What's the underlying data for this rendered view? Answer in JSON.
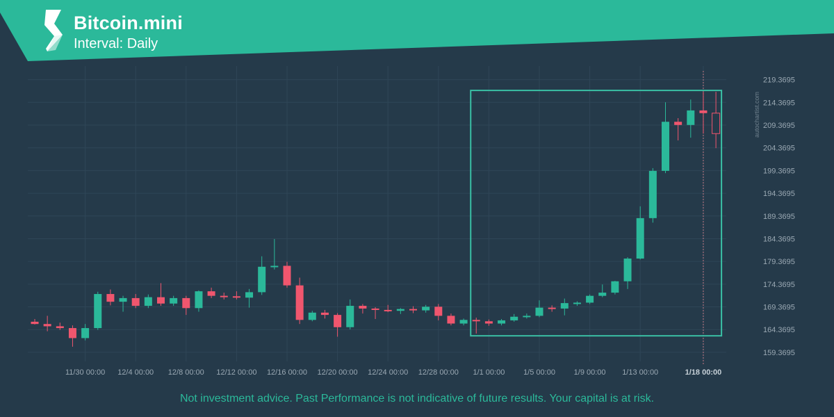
{
  "header": {
    "title": "Bitcoin.mini",
    "interval": "Interval: Daily"
  },
  "watermark": "autochartist.com",
  "disclaimer": "Not investment advice. Past Performance is not indicative of future results. Your capital is at risk.",
  "colors": {
    "background": "#253a4a",
    "banner": "#2bb99a",
    "up": "#2bb99a",
    "down": "#f0566e",
    "grid": "#2f4657",
    "pattern_box": "#3ac0a5"
  },
  "chart_data": {
    "type": "candlestick",
    "ylim": [
      157.3695,
      222.3695
    ],
    "y_ticks": [
      "159.3695",
      "164.3695",
      "169.3695",
      "174.3695",
      "179.3695",
      "184.3695",
      "189.3695",
      "194.3695",
      "199.3695",
      "204.3695",
      "209.3695",
      "214.3695",
      "219.3695"
    ],
    "x_ticks": [
      {
        "label": "11/30 00:00",
        "index": 4
      },
      {
        "label": "12/4 00:00",
        "index": 8
      },
      {
        "label": "12/8 00:00",
        "index": 12
      },
      {
        "label": "12/12 00:00",
        "index": 16
      },
      {
        "label": "12/16 00:00",
        "index": 20
      },
      {
        "label": "12/20 00:00",
        "index": 24
      },
      {
        "label": "12/24 00:00",
        "index": 28
      },
      {
        "label": "12/28 00:00",
        "index": 32
      },
      {
        "label": "1/1 00:00",
        "index": 36
      },
      {
        "label": "1/5 00:00",
        "index": 40
      },
      {
        "label": "1/9 00:00",
        "index": 44
      },
      {
        "label": "1/13 00:00",
        "index": 48
      },
      {
        "label": "1/18 00:00",
        "index": 53,
        "highlight": true
      }
    ],
    "candles": [
      {
        "o": 166.1,
        "h": 166.7,
        "l": 165.5,
        "c": 165.6
      },
      {
        "o": 165.6,
        "h": 167.4,
        "l": 164.0,
        "c": 165.1
      },
      {
        "o": 165.1,
        "h": 165.9,
        "l": 164.3,
        "c": 164.7
      },
      {
        "o": 164.7,
        "h": 165.3,
        "l": 160.6,
        "c": 162.5
      },
      {
        "o": 162.5,
        "h": 165.6,
        "l": 162.0,
        "c": 164.7
      },
      {
        "o": 164.7,
        "h": 172.7,
        "l": 164.3,
        "c": 172.2
      },
      {
        "o": 172.2,
        "h": 173.2,
        "l": 169.7,
        "c": 170.5
      },
      {
        "o": 170.5,
        "h": 171.8,
        "l": 168.3,
        "c": 171.3
      },
      {
        "o": 171.3,
        "h": 172.2,
        "l": 169.1,
        "c": 169.6
      },
      {
        "o": 169.6,
        "h": 172.1,
        "l": 169.1,
        "c": 171.5
      },
      {
        "o": 171.5,
        "h": 174.6,
        "l": 169.6,
        "c": 170.1
      },
      {
        "o": 170.1,
        "h": 171.8,
        "l": 169.6,
        "c": 171.3
      },
      {
        "o": 171.3,
        "h": 171.8,
        "l": 167.6,
        "c": 169.1
      },
      {
        "o": 169.1,
        "h": 173.0,
        "l": 168.3,
        "c": 172.8
      },
      {
        "o": 172.8,
        "h": 173.6,
        "l": 171.3,
        "c": 171.8
      },
      {
        "o": 171.8,
        "h": 172.5,
        "l": 171.0,
        "c": 171.7
      },
      {
        "o": 171.7,
        "h": 172.8,
        "l": 171.0,
        "c": 171.4
      },
      {
        "o": 171.4,
        "h": 173.3,
        "l": 169.2,
        "c": 172.6
      },
      {
        "o": 172.6,
        "h": 180.5,
        "l": 172.0,
        "c": 178.2
      },
      {
        "o": 178.2,
        "h": 184.3,
        "l": 177.6,
        "c": 178.4
      },
      {
        "o": 178.4,
        "h": 179.3,
        "l": 173.6,
        "c": 174.1
      },
      {
        "o": 174.1,
        "h": 175.8,
        "l": 165.6,
        "c": 166.5
      },
      {
        "o": 166.5,
        "h": 168.5,
        "l": 166.2,
        "c": 168.1
      },
      {
        "o": 168.1,
        "h": 168.7,
        "l": 166.8,
        "c": 167.6
      },
      {
        "o": 167.6,
        "h": 168.0,
        "l": 162.8,
        "c": 164.9
      },
      {
        "o": 164.9,
        "h": 171.0,
        "l": 164.4,
        "c": 169.6
      },
      {
        "o": 169.6,
        "h": 170.0,
        "l": 167.9,
        "c": 169.0
      },
      {
        "o": 169.0,
        "h": 169.3,
        "l": 166.7,
        "c": 168.7
      },
      {
        "o": 168.7,
        "h": 169.8,
        "l": 168.2,
        "c": 168.5
      },
      {
        "o": 168.5,
        "h": 169.1,
        "l": 167.8,
        "c": 168.9
      },
      {
        "o": 168.9,
        "h": 169.5,
        "l": 168.0,
        "c": 168.6
      },
      {
        "o": 168.6,
        "h": 169.8,
        "l": 168.1,
        "c": 169.4
      },
      {
        "o": 169.4,
        "h": 170.0,
        "l": 166.4,
        "c": 167.4
      },
      {
        "o": 167.4,
        "h": 167.9,
        "l": 165.3,
        "c": 165.7
      },
      {
        "o": 165.7,
        "h": 166.8,
        "l": 165.3,
        "c": 166.5
      },
      {
        "o": 166.5,
        "h": 167.0,
        "l": 163.5,
        "c": 166.2
      },
      {
        "o": 166.2,
        "h": 166.6,
        "l": 165.2,
        "c": 165.7
      },
      {
        "o": 165.7,
        "h": 166.7,
        "l": 165.3,
        "c": 166.4
      },
      {
        "o": 166.4,
        "h": 167.8,
        "l": 166.1,
        "c": 167.2
      },
      {
        "o": 167.2,
        "h": 167.9,
        "l": 166.8,
        "c": 167.4
      },
      {
        "o": 167.4,
        "h": 170.8,
        "l": 167.1,
        "c": 169.2
      },
      {
        "o": 169.2,
        "h": 169.7,
        "l": 168.3,
        "c": 169.0
      },
      {
        "o": 169.0,
        "h": 171.2,
        "l": 167.5,
        "c": 170.2
      },
      {
        "o": 170.2,
        "h": 170.6,
        "l": 169.6,
        "c": 170.3
      },
      {
        "o": 170.3,
        "h": 172.1,
        "l": 170.0,
        "c": 171.8
      },
      {
        "o": 171.8,
        "h": 174.3,
        "l": 171.5,
        "c": 172.5
      },
      {
        "o": 172.5,
        "h": 175.1,
        "l": 172.1,
        "c": 175.0
      },
      {
        "o": 175.0,
        "h": 180.3,
        "l": 173.3,
        "c": 180.0
      },
      {
        "o": 180.0,
        "h": 191.5,
        "l": 179.8,
        "c": 188.9
      },
      {
        "o": 188.9,
        "h": 199.9,
        "l": 187.9,
        "c": 199.3
      },
      {
        "o": 199.3,
        "h": 214.4,
        "l": 198.8,
        "c": 210.1
      },
      {
        "o": 210.1,
        "h": 210.9,
        "l": 206.0,
        "c": 209.4
      },
      {
        "o": 209.4,
        "h": 215.0,
        "l": 206.6,
        "c": 212.6
      },
      {
        "o": 212.6,
        "h": 216.7,
        "l": 207.5,
        "c": 212.0
      },
      {
        "o": 212.0,
        "h": 216.7,
        "l": 204.3,
        "c": 207.5,
        "hollow": true
      }
    ],
    "pattern_box": {
      "start_index": 35,
      "end_index": 54,
      "y_top": 217.0,
      "y_bottom": 163.0
    }
  }
}
